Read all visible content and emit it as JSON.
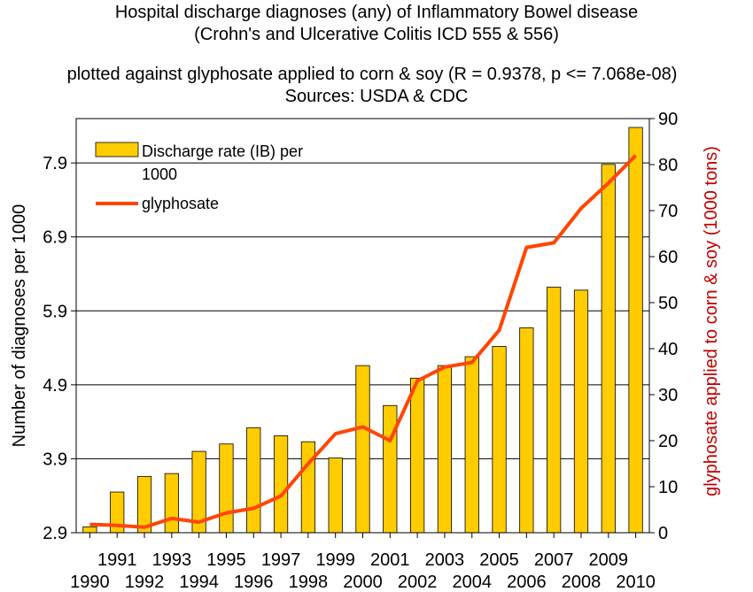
{
  "chart_data": {
    "type": "bar",
    "title": [
      "Hospital discharge diagnoses (any) of Inflammatory Bowel disease",
      "(Crohn's and Ulcerative Colitis  ICD 555 & 556)"
    ],
    "subtitle": [
      "plotted against glyphosate applied to corn & soy (R = 0.9378, p <= 7.068e-08)",
      "Sources: USDA & CDC"
    ],
    "ylabel": "Number of diagnoses per 1000",
    "y2label": "glyphosate applied to corn & soy (1000 tons)",
    "ylim": [
      2.9,
      8.5
    ],
    "yticks": [
      "2.9",
      "3.9",
      "4.9",
      "5.9",
      "6.9",
      "7.9"
    ],
    "y2lim": [
      0,
      90
    ],
    "y2ticks": [
      "0",
      "10",
      "20",
      "30",
      "40",
      "50",
      "60",
      "70",
      "80",
      "90"
    ],
    "legend_position": "top-left",
    "categories": [
      "1990",
      "1991",
      "1992",
      "1993",
      "1994",
      "1995",
      "1996",
      "1997",
      "1998",
      "1999",
      "2000",
      "2001",
      "2002",
      "2003",
      "2004",
      "2005",
      "2006",
      "2007",
      "2008",
      "2009",
      "2010"
    ],
    "series": [
      {
        "name": "Discharge rate (IB) per 1000",
        "kind": "bar",
        "axis": "left",
        "color": "#ffcc00",
        "values": [
          2.98,
          3.45,
          3.66,
          3.7,
          4.0,
          4.1,
          4.32,
          4.21,
          4.13,
          3.91,
          5.16,
          4.62,
          4.99,
          5.16,
          5.28,
          5.42,
          5.67,
          6.22,
          6.18,
          7.88,
          8.38
        ]
      },
      {
        "name": "glyphosate",
        "kind": "line",
        "axis": "right",
        "color": "#ff4500",
        "values": [
          1.8,
          1.6,
          1.2,
          3.1,
          2.3,
          4.3,
          5.3,
          8.0,
          15.0,
          21.5,
          23.0,
          20.0,
          33.0,
          36.0,
          37.0,
          44.0,
          62.0,
          63.0,
          70.5,
          76.0,
          82.0
        ]
      }
    ],
    "legend": [
      {
        "label_line1": "Discharge rate (IB) per",
        "label_line2": "1000"
      },
      {
        "label_line1": "glyphosate",
        "label_line2": ""
      }
    ]
  }
}
